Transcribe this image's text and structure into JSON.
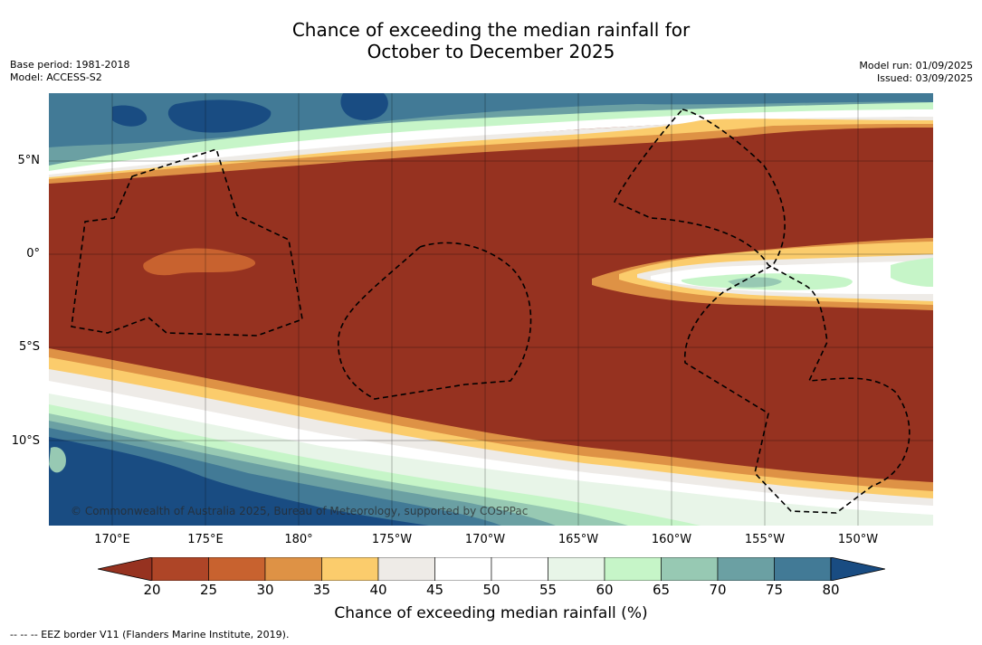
{
  "title_line1": "Chance of exceeding the median rainfall for",
  "title_line2": "October to December 2025",
  "meta_left": {
    "line1": "Base period: 1981-2018",
    "line2": "Model: ACCESS-S2"
  },
  "meta_right": {
    "line1": "Model run: 01/09/2025",
    "line2": "Issued: 03/09/2025"
  },
  "lat_labels": [
    "5°N",
    "0°",
    "5°S",
    "10°S"
  ],
  "lon_labels": [
    "170°E",
    "175°E",
    "180°",
    "175°W",
    "170°W",
    "165°W",
    "160°W",
    "155°W",
    "150°W"
  ],
  "colorbar": {
    "ticks": [
      "20",
      "25",
      "30",
      "35",
      "40",
      "45",
      "50",
      "55",
      "60",
      "65",
      "70",
      "75",
      "80"
    ],
    "colors": [
      "#963220",
      "#ae4527",
      "#c8622f",
      "#de9245",
      "#fbcc6c",
      "#eeebe7",
      "#ffffff",
      "#ffffff",
      "#e8f5e8",
      "#c6f5c8",
      "#97c9b3",
      "#6ba0a3",
      "#427a96",
      "#194c82"
    ],
    "label": "Chance of exceeding median rainfall (%)"
  },
  "copyright": "© Commonwealth of Australia 2025, Bureau of Meteorology, supported by COSPPac",
  "footnote": "-- -- -- EEZ border V11 (Flanders Marine Institute, 2019).",
  "map_colors": {
    "dry": "#963220",
    "wet": "#194c82",
    "neutral": "#ffffff"
  }
}
